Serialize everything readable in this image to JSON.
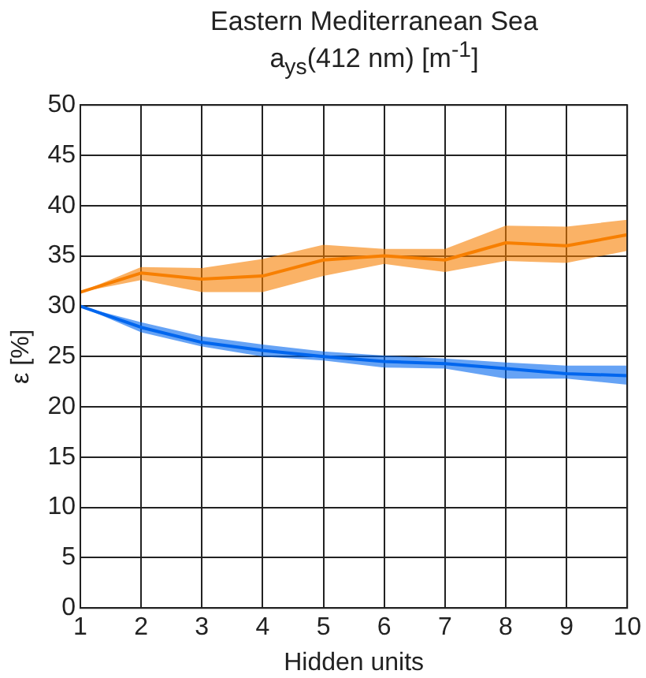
{
  "chart_data": {
    "type": "line",
    "title": "Eastern Mediterranean Sea",
    "subtitle": "a$_{ys}$(412 nm) [m$^{-1}$]",
    "xlabel": "Hidden units",
    "ylabel": "ε [%]",
    "x": [
      1,
      2,
      3,
      4,
      5,
      6,
      7,
      8,
      9,
      10
    ],
    "xlim": [
      1,
      10
    ],
    "xticks": [
      1,
      2,
      3,
      4,
      5,
      6,
      7,
      8,
      9,
      10
    ],
    "ylim": [
      0,
      50
    ],
    "yticks": [
      0,
      5,
      10,
      15,
      20,
      25,
      30,
      35,
      40,
      45,
      50
    ],
    "grid": true,
    "legend": false,
    "marker": "none",
    "line_style": "solid",
    "series": [
      {
        "color": "#f77f00",
        "values": [
          31.4,
          33.3,
          32.7,
          33.0,
          34.6,
          35.0,
          34.6,
          36.3,
          36.0,
          37.1
        ],
        "lower": [
          31.4,
          32.6,
          31.4,
          31.4,
          33.0,
          34.2,
          33.4,
          34.5,
          34.3,
          35.5
        ],
        "upper": [
          31.4,
          33.9,
          33.8,
          34.7,
          36.1,
          35.7,
          35.7,
          38.0,
          37.9,
          38.6
        ]
      },
      {
        "color": "#0066ee",
        "values": [
          30.0,
          27.9,
          26.4,
          25.6,
          25.0,
          24.5,
          24.3,
          23.8,
          23.3,
          23.1
        ],
        "lower": [
          30.0,
          27.4,
          26.0,
          25.0,
          24.6,
          23.9,
          23.8,
          22.8,
          22.8,
          22.2
        ],
        "upper": [
          30.0,
          28.4,
          27.0,
          26.2,
          25.5,
          25.1,
          24.8,
          24.4,
          24.1,
          24.1
        ]
      }
    ]
  }
}
